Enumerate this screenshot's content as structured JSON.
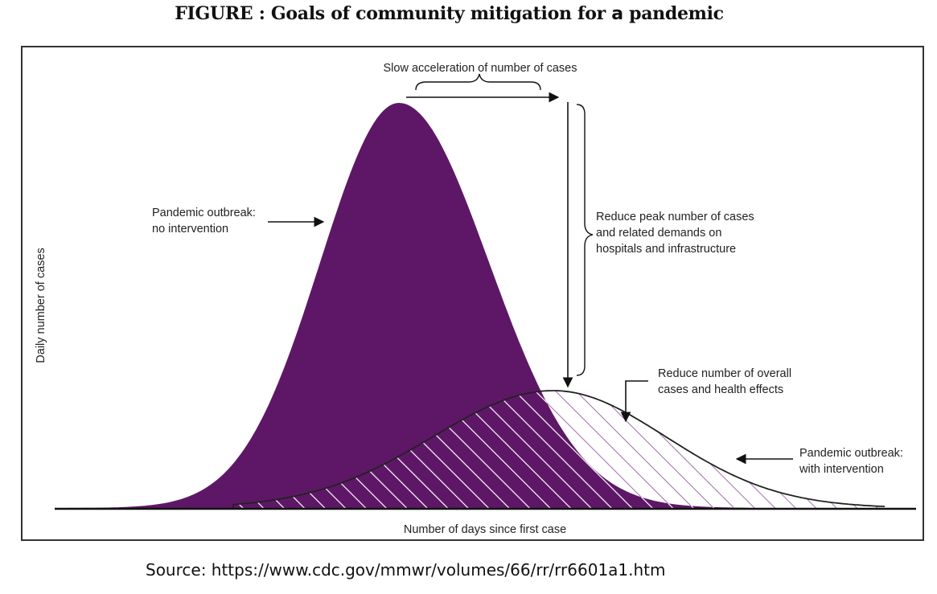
{
  "title": {
    "prefix": "FIGURE : Goals of community mitigation for ",
    "letter": "a",
    "suffix": "  pandemic"
  },
  "axes": {
    "y_label": "Daily number of cases",
    "x_label": "Number of days since first case"
  },
  "annotations": {
    "slow_acceleration": "Slow acceleration of number of cases",
    "reduce_peak": [
      "Reduce peak number of cases",
      "and related demands on",
      "hospitals and infrastructure"
    ],
    "reduce_overall": [
      "Reduce number of overall",
      "cases and health effects"
    ],
    "no_intervention": [
      "Pandemic outbreak:",
      "no intervention"
    ],
    "with_intervention": [
      "Pandemic outbreak:",
      "with intervention"
    ]
  },
  "colors": {
    "no_intervention_fill": "#5e1766",
    "hatch_stroke": "#ffffff",
    "hatch_light": "#8a4d94",
    "outline": "#222222"
  },
  "source": "Source: https://www.cdc.gov/mmwr/volumes/66/rr/rr6601a1.htm"
}
